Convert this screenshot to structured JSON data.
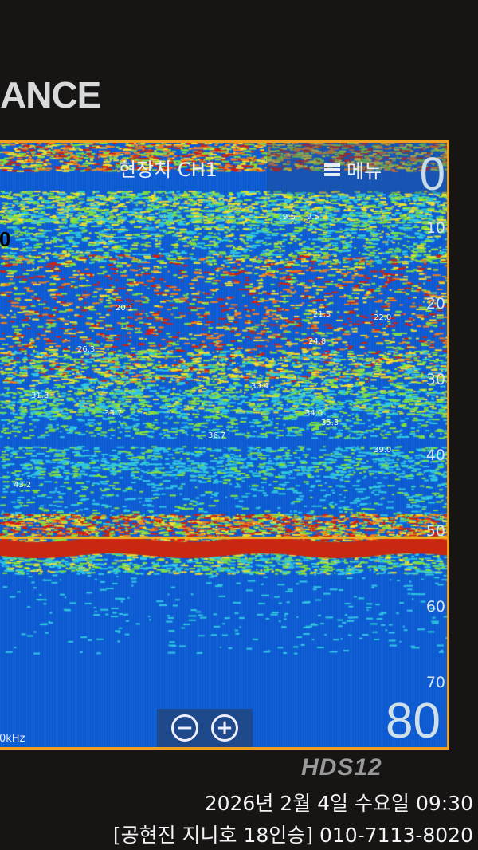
{
  "device": {
    "brand": "ANCE",
    "model": "HDS12"
  },
  "screen": {
    "title": "현장치 CH1",
    "menu_label": "메뉴",
    "menu_icon": "hamburger-icon",
    "range_top": "0",
    "range_bottom": "80",
    "left_value": "0",
    "frequency": "0kHz",
    "depth_ticks": [
      "10",
      "20",
      "30",
      "40",
      "50",
      "60",
      "70"
    ],
    "fish_depths": [
      "9.5",
      "9.5",
      "20.1",
      "21.3",
      "22.0",
      "24.8",
      "26.3",
      "30.4",
      "31.3",
      "33.7",
      "34.0",
      "35.3",
      "36.7",
      "39.0",
      "43.2"
    ],
    "zoom_out_icon": "minus-circle-icon",
    "zoom_in_icon": "plus-circle-icon"
  },
  "overlay": {
    "date": "2026년 2월 4일 수요일 09:30",
    "caption": "[공현진 지니호 18인승]  010-7113-8020"
  },
  "colors": {
    "border": "#f0a020",
    "water": "#1060d8"
  }
}
